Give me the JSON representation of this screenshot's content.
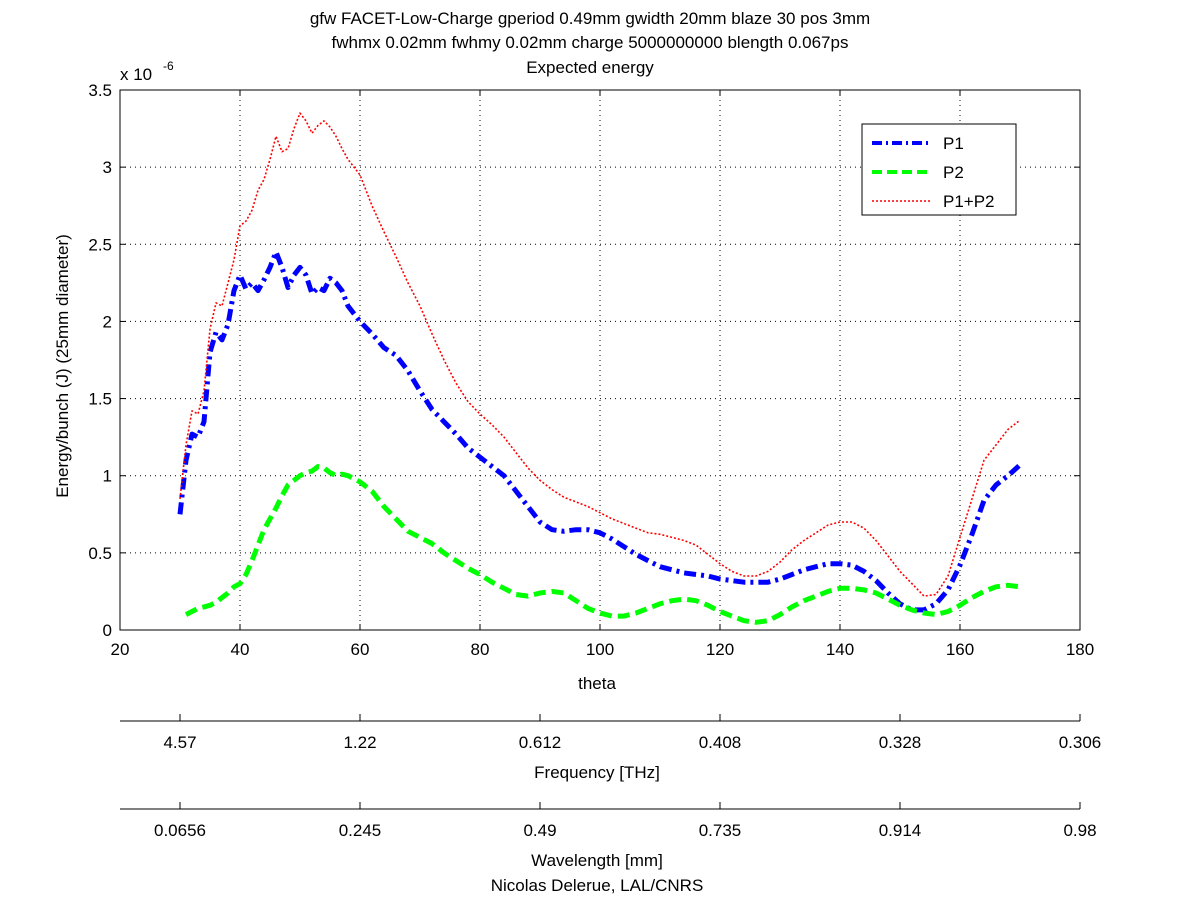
{
  "chart_data": {
    "type": "line",
    "title_lines": [
      "gfw FACET-Low-Charge gperiod 0.49mm gwidth 20mm blaze 30 pos 3mm",
      "fwhmx 0.02mm fwhmy 0.02mm charge 5000000000 blength 0.067ps",
      "Expected energy"
    ],
    "xlabel": "theta",
    "ylabel": "Energy/bunch (J) (25mm diameter)",
    "y_exponent_label": "x 10",
    "y_exponent_power": "-6",
    "xlim": [
      20,
      180
    ],
    "ylim": [
      0,
      3.5
    ],
    "x_ticks": [
      "20",
      "40",
      "60",
      "80",
      "100",
      "120",
      "140",
      "160",
      "180"
    ],
    "y_ticks": [
      "0",
      "0.5",
      "1",
      "1.5",
      "2",
      "2.5",
      "3",
      "3.5"
    ],
    "grid": true,
    "legend_position": "top-right",
    "series": [
      {
        "name": "P1",
        "color": "#0000ff",
        "style": "dash-dot",
        "x": [
          30,
          31,
          32,
          33,
          34,
          35,
          36,
          37,
          38,
          39,
          40,
          41,
          42,
          43,
          44,
          45,
          46,
          47,
          48,
          49,
          50,
          51,
          52,
          53,
          54,
          55,
          56,
          57,
          58,
          60,
          62,
          64,
          66,
          68,
          70,
          72,
          74,
          76,
          78,
          80,
          82,
          84,
          86,
          88,
          90,
          92,
          94,
          96,
          98,
          100,
          102,
          104,
          106,
          108,
          110,
          112,
          114,
          116,
          118,
          120,
          122,
          124,
          126,
          128,
          130,
          132,
          134,
          136,
          138,
          140,
          142,
          144,
          146,
          148,
          150,
          152,
          154,
          156,
          158,
          160,
          162,
          164,
          166,
          168,
          170
        ],
        "values": [
          0.75,
          1.1,
          1.27,
          1.25,
          1.35,
          1.8,
          1.93,
          1.88,
          1.98,
          2.2,
          2.3,
          2.21,
          2.25,
          2.2,
          2.27,
          2.35,
          2.45,
          2.35,
          2.22,
          2.3,
          2.35,
          2.3,
          2.18,
          2.22,
          2.2,
          2.28,
          2.25,
          2.2,
          2.1,
          2.0,
          1.92,
          1.83,
          1.78,
          1.68,
          1.55,
          1.43,
          1.35,
          1.27,
          1.18,
          1.12,
          1.06,
          1.0,
          0.9,
          0.8,
          0.7,
          0.65,
          0.64,
          0.65,
          0.65,
          0.63,
          0.59,
          0.54,
          0.49,
          0.45,
          0.41,
          0.39,
          0.37,
          0.36,
          0.35,
          0.33,
          0.32,
          0.31,
          0.31,
          0.31,
          0.33,
          0.36,
          0.39,
          0.41,
          0.43,
          0.43,
          0.42,
          0.38,
          0.32,
          0.24,
          0.17,
          0.13,
          0.13,
          0.17,
          0.26,
          0.42,
          0.62,
          0.84,
          0.94,
          1.0,
          1.07
        ]
      },
      {
        "name": "P2",
        "color": "#00ff00",
        "style": "dashed",
        "x": [
          31,
          32,
          33,
          34,
          35,
          36,
          37,
          38,
          39,
          40,
          41,
          42,
          43,
          44,
          45,
          46,
          47,
          48,
          49,
          50,
          51,
          52,
          53,
          54,
          55,
          56,
          57,
          58,
          60,
          62,
          64,
          66,
          68,
          70,
          72,
          74,
          76,
          78,
          80,
          82,
          84,
          86,
          88,
          90,
          92,
          94,
          96,
          98,
          100,
          102,
          104,
          106,
          108,
          110,
          112,
          114,
          116,
          118,
          120,
          122,
          124,
          126,
          128,
          130,
          132,
          134,
          136,
          138,
          140,
          142,
          144,
          146,
          148,
          150,
          152,
          154,
          156,
          158,
          160,
          162,
          164,
          166,
          168,
          170
        ],
        "values": [
          0.1,
          0.12,
          0.14,
          0.15,
          0.16,
          0.18,
          0.21,
          0.24,
          0.28,
          0.3,
          0.36,
          0.45,
          0.55,
          0.65,
          0.72,
          0.79,
          0.87,
          0.94,
          0.97,
          1.0,
          1.02,
          1.03,
          1.06,
          1.05,
          1.02,
          1.0,
          1.01,
          1.0,
          0.96,
          0.9,
          0.8,
          0.72,
          0.64,
          0.6,
          0.56,
          0.5,
          0.45,
          0.4,
          0.36,
          0.31,
          0.27,
          0.23,
          0.22,
          0.24,
          0.25,
          0.24,
          0.19,
          0.14,
          0.11,
          0.09,
          0.09,
          0.11,
          0.14,
          0.17,
          0.19,
          0.2,
          0.19,
          0.16,
          0.12,
          0.09,
          0.06,
          0.05,
          0.06,
          0.1,
          0.15,
          0.19,
          0.22,
          0.25,
          0.27,
          0.27,
          0.26,
          0.24,
          0.2,
          0.16,
          0.13,
          0.11,
          0.1,
          0.12,
          0.16,
          0.21,
          0.25,
          0.28,
          0.29,
          0.28
        ]
      },
      {
        "name": "P1+P2",
        "color": "#ff0000",
        "style": "dotted",
        "x": [
          30,
          31,
          32,
          33,
          34,
          35,
          36,
          37,
          38,
          39,
          40,
          41,
          42,
          43,
          44,
          45,
          46,
          47,
          48,
          49,
          50,
          51,
          52,
          53,
          54,
          55,
          56,
          57,
          58,
          60,
          62,
          64,
          66,
          68,
          70,
          72,
          74,
          76,
          78,
          80,
          82,
          84,
          86,
          88,
          90,
          92,
          94,
          96,
          98,
          100,
          102,
          104,
          106,
          108,
          110,
          112,
          114,
          116,
          118,
          120,
          122,
          124,
          126,
          128,
          130,
          132,
          134,
          136,
          138,
          140,
          142,
          144,
          146,
          148,
          150,
          152,
          154,
          156,
          158,
          160,
          162,
          164,
          166,
          168,
          170
        ],
        "values": [
          0.85,
          1.2,
          1.42,
          1.4,
          1.55,
          1.95,
          2.12,
          2.1,
          2.25,
          2.4,
          2.62,
          2.65,
          2.72,
          2.85,
          2.92,
          3.05,
          3.2,
          3.1,
          3.12,
          3.25,
          3.35,
          3.3,
          3.22,
          3.27,
          3.3,
          3.26,
          3.2,
          3.12,
          3.05,
          2.95,
          2.75,
          2.58,
          2.42,
          2.25,
          2.1,
          1.92,
          1.75,
          1.6,
          1.48,
          1.4,
          1.33,
          1.25,
          1.15,
          1.05,
          0.97,
          0.91,
          0.86,
          0.83,
          0.8,
          0.76,
          0.72,
          0.69,
          0.66,
          0.63,
          0.62,
          0.6,
          0.58,
          0.55,
          0.49,
          0.43,
          0.38,
          0.35,
          0.35,
          0.38,
          0.44,
          0.52,
          0.58,
          0.63,
          0.68,
          0.7,
          0.7,
          0.66,
          0.58,
          0.48,
          0.38,
          0.3,
          0.22,
          0.23,
          0.35,
          0.6,
          0.85,
          1.1,
          1.2,
          1.3,
          1.36
        ]
      }
    ],
    "secondary_axes": [
      {
        "label": "Frequency [THz]",
        "tick_labels": [
          "4.57",
          "1.22",
          "0.612",
          "0.408",
          "0.328",
          "0.306"
        ],
        "tick_theta": [
          30,
          60,
          90,
          120,
          150,
          180
        ]
      },
      {
        "label": "Wavelength [mm]",
        "tick_labels": [
          "0.0656",
          "0.245",
          "0.49",
          "0.735",
          "0.914",
          "0.98"
        ],
        "tick_theta": [
          30,
          60,
          90,
          120,
          150,
          180
        ]
      }
    ],
    "credit": "Nicolas Delerue, LAL/CNRS"
  }
}
